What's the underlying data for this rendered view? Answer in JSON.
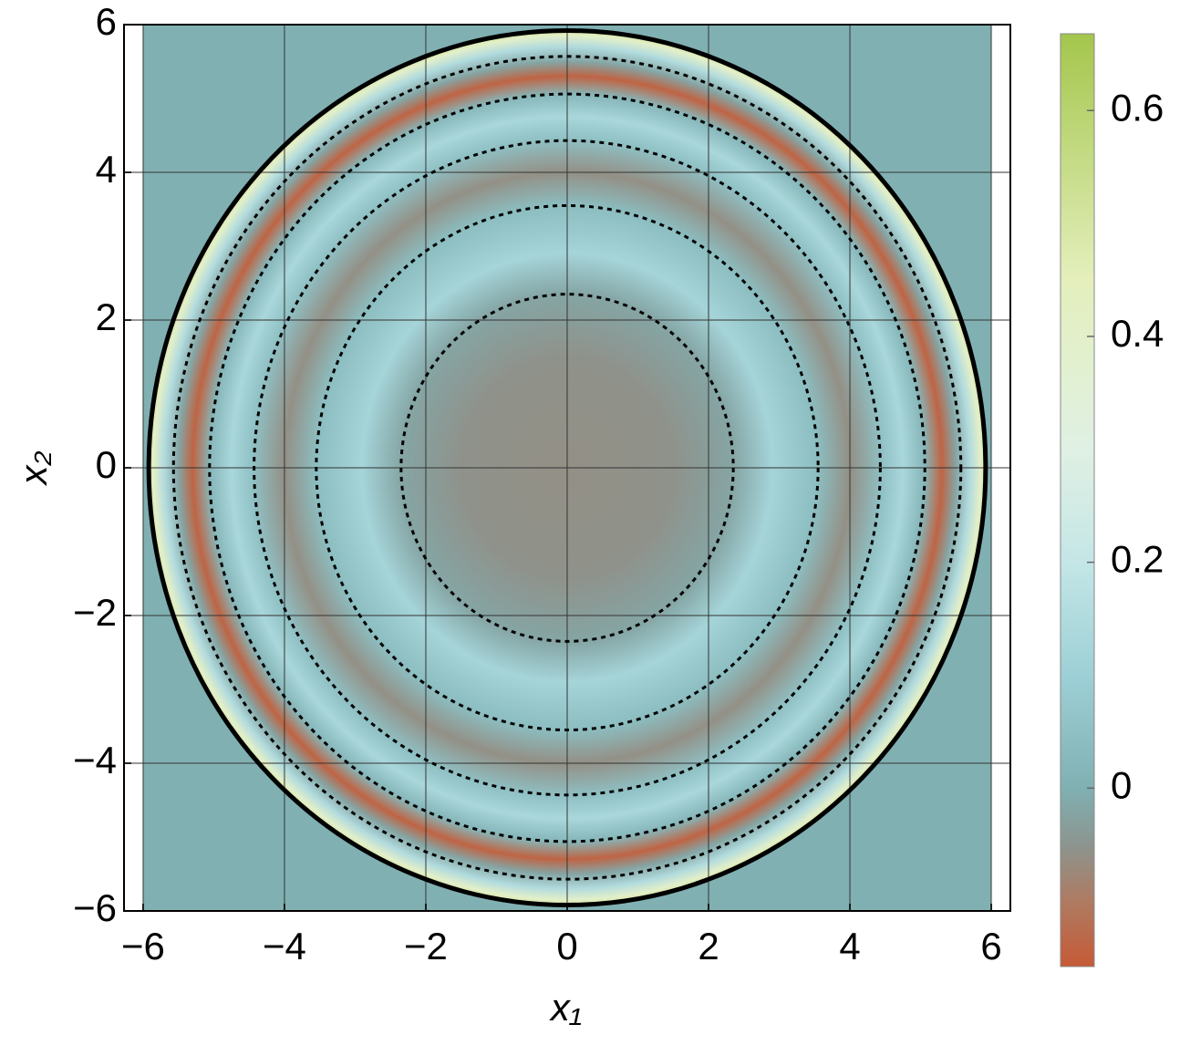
{
  "chart_data": {
    "type": "density",
    "x_label": "x₁",
    "y_label": "x₂",
    "xlim": [
      -6.27,
      6.27
    ],
    "ylim": [
      -6,
      6
    ],
    "xticks": [
      {
        "value": -6,
        "label": "−6"
      },
      {
        "value": -4,
        "label": "−4"
      },
      {
        "value": -2,
        "label": "−2"
      },
      0,
      2,
      4,
      6
    ],
    "yticks": [
      {
        "value": -6,
        "label": "−6"
      },
      {
        "value": -4,
        "label": "−4"
      },
      {
        "value": -2,
        "label": "−2"
      },
      0,
      2,
      4,
      6
    ],
    "grid": true,
    "field": {
      "extent": [
        -6,
        6
      ],
      "outside": 0,
      "boundary": 5.92,
      "r": [
        0,
        1.5,
        2.35,
        2.9,
        3.55,
        4.0,
        4.45,
        4.75,
        5.06,
        5.3,
        5.5,
        5.7,
        5.85,
        5.92
      ],
      "values": [
        -0.06,
        -0.055,
        -0.02,
        0.12,
        0.04,
        -0.06,
        0.05,
        0.13,
        0.02,
        -0.14,
        -0.02,
        0.15,
        0.4,
        0.5
      ]
    },
    "contours": [
      2.35,
      3.55,
      4.43,
      5.06,
      5.57
    ],
    "colormap": [
      {
        "value": -0.158,
        "color": "#c65a36"
      },
      {
        "value": -0.1,
        "color": "#ae7b62"
      },
      {
        "value": -0.05,
        "color": "#8c958f"
      },
      {
        "value": 0,
        "color": "#80b0b2"
      },
      {
        "value": 0.1,
        "color": "#9dd0d6"
      },
      {
        "value": 0.2,
        "color": "#c4e6e6"
      },
      {
        "value": 0.3,
        "color": "#e0f0e4"
      },
      {
        "value": 0.45,
        "color": "#e4efbc"
      },
      {
        "value": 0.668,
        "color": "#a4c64c"
      }
    ],
    "clim": [
      -0.158,
      0.668
    ],
    "cticks": [
      0,
      0.2,
      0.4,
      0.6
    ]
  }
}
